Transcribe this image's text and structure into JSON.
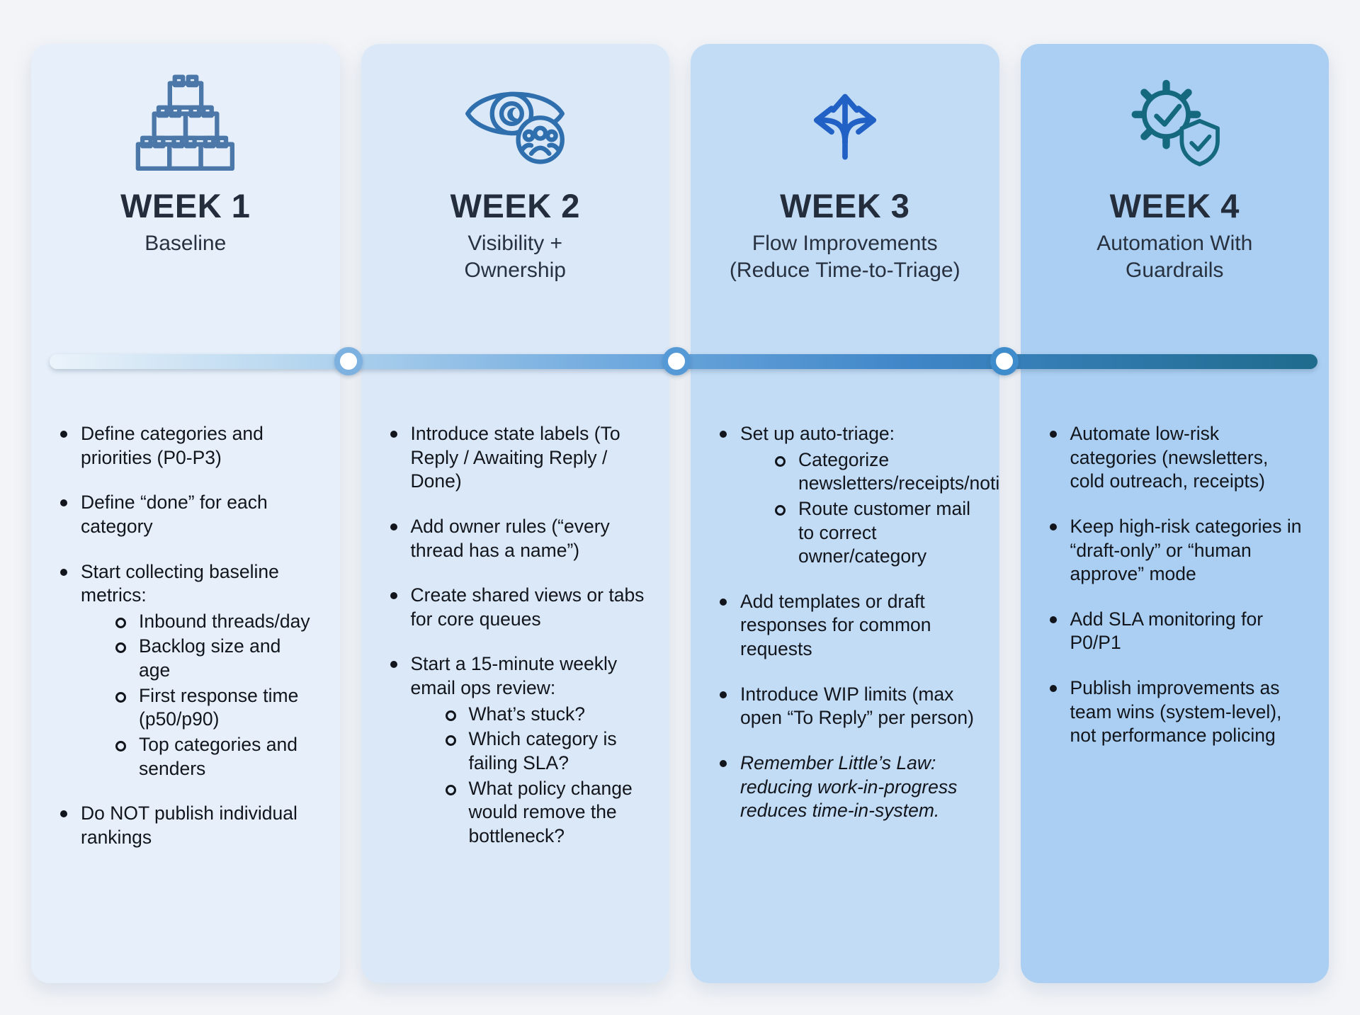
{
  "page": {
    "background": "#f2f4f7"
  },
  "timeline": {
    "bar_gradient": [
      "#ebf3fa",
      "#b5d6ef",
      "#6fa9de",
      "#3f86c8",
      "#1e6b8d"
    ],
    "nodes": [
      {
        "position_pct": 25.65,
        "ring_color": "#7db1e0"
      },
      {
        "position_pct": 49.75,
        "ring_color": "#559ad7"
      },
      {
        "position_pct": 73.85,
        "ring_color": "#3f8ccc"
      }
    ]
  },
  "columns": [
    {
      "title": "WEEK 1",
      "subtitle_lines": [
        "Baseline"
      ],
      "icon": "building-blocks-icon",
      "accent": "#4b77a9",
      "background": "#e7f0fa",
      "items": [
        {
          "text": "Define categories and priorities (P0-P3)"
        },
        {
          "text": "Define “done” for each category"
        },
        {
          "text": "Start collecting baseline metrics:",
          "sub": [
            "Inbound threads/day",
            "Backlog size and age",
            "First response time (p50/p90)",
            "Top categories and senders"
          ]
        },
        {
          "text": "Do NOT publish individual rankings"
        }
      ]
    },
    {
      "title": "WEEK 2",
      "subtitle_lines": [
        "Visibility +",
        "Ownership"
      ],
      "icon": "eye-team-icon",
      "accent": "#2f6fae",
      "background": "#dbe8f8",
      "items": [
        {
          "text": "Introduce state labels (To Reply / Awaiting Reply / Done)"
        },
        {
          "text": "Add owner rules (“every thread has a name”)"
        },
        {
          "text": "Create shared views or tabs for core queues"
        },
        {
          "text": "Start a 15-minute weekly email ops review:",
          "sub": [
            "What’s stuck?",
            "Which category is failing SLA?",
            "What policy change would remove the bottleneck?"
          ]
        }
      ]
    },
    {
      "title": "WEEK 3",
      "subtitle_lines": [
        "Flow Improvements",
        "(Reduce Time-to-Triage)"
      ],
      "icon": "branch-arrows-icon",
      "accent": "#2160c4",
      "background": "#c3dcf6",
      "items": [
        {
          "text": "Set up auto-triage:",
          "sub": [
            "Categorize newsletters/receipts/notifications",
            "Route customer mail to correct owner/category"
          ]
        },
        {
          "text": "Add templates or draft responses for common requests"
        },
        {
          "text": "Introduce WIP limits (max open “To Reply” per person)"
        },
        {
          "text": "Remember Little’s Law: reducing work-in-progress reduces time-in-system.",
          "italic": true
        }
      ]
    },
    {
      "title": "WEEK 4",
      "subtitle_lines": [
        "Automation With",
        "Guardrails"
      ],
      "icon": "gear-shield-icon",
      "accent": "#15697f",
      "background": "#abcff2",
      "items": [
        {
          "text": "Automate low-risk categories (newsletters, cold outreach, receipts)"
        },
        {
          "text": "Keep high-risk categories in “draft-only” or “human approve” mode"
        },
        {
          "text": "Add SLA monitoring for P0/P1"
        },
        {
          "text": "Publish improvements as team wins (system-level), not performance policing"
        }
      ]
    }
  ]
}
